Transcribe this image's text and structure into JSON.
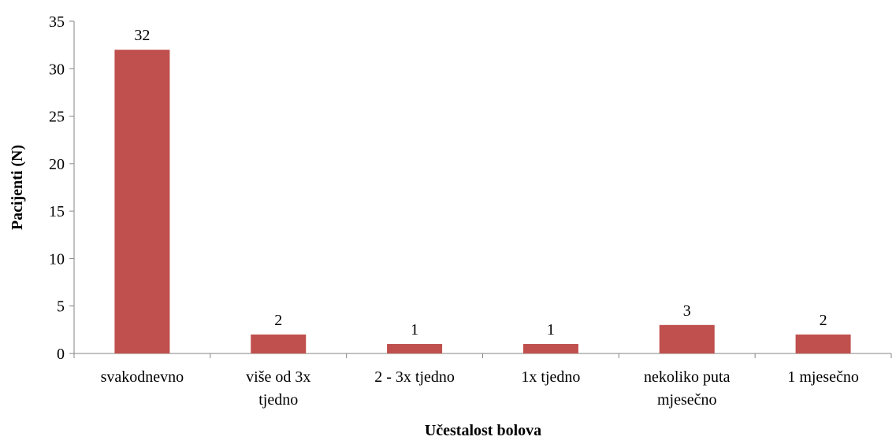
{
  "chart_data": {
    "type": "bar",
    "title": "",
    "xlabel": "Učestalost bolova",
    "ylabel": "Pacijenti (N)",
    "ylim": [
      0,
      35
    ],
    "yticks": [
      0,
      5,
      10,
      15,
      20,
      25,
      30,
      35
    ],
    "categories": [
      [
        "svakodnevno"
      ],
      [
        "više od 3x",
        "tjedno"
      ],
      [
        "2 - 3x tjedno"
      ],
      [
        "1x tjedno"
      ],
      [
        "nekoliko puta",
        "mjesečno"
      ],
      [
        "1 mjesečno"
      ]
    ],
    "series": [
      {
        "values": [
          32,
          2,
          1,
          1,
          3,
          2
        ],
        "color": "#c0504d"
      }
    ],
    "data_labels": true,
    "grid": false,
    "legend": "none"
  }
}
